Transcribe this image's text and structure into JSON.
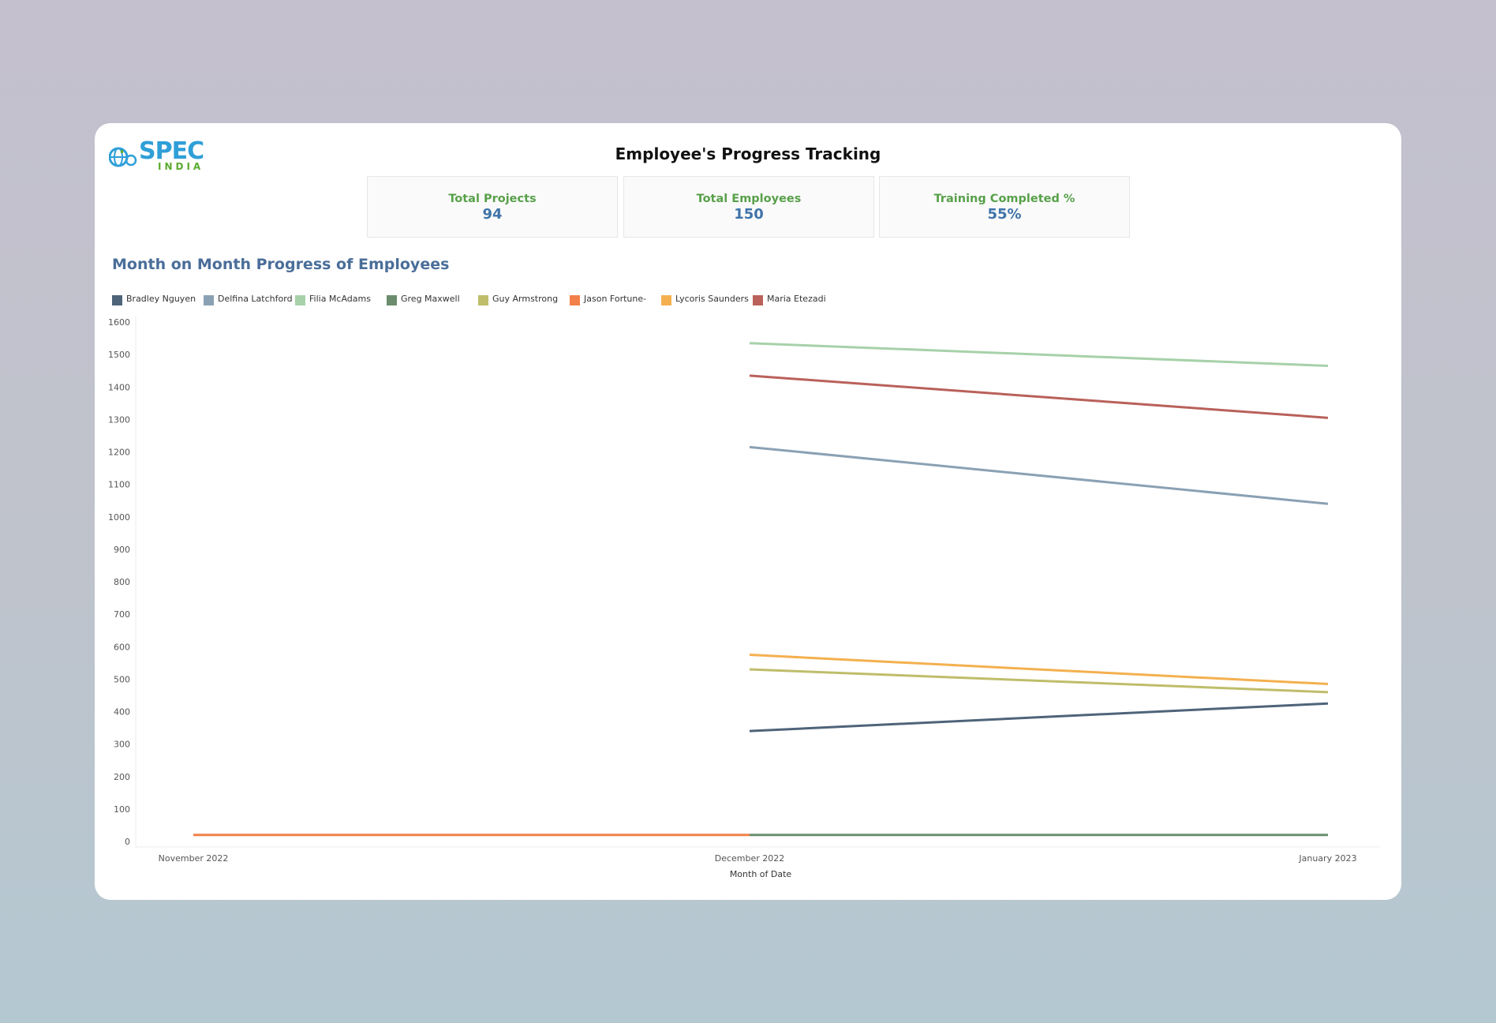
{
  "header": {
    "logo_text": "SPEC",
    "logo_subtext": "INDIA",
    "title": "Employee's Progress Tracking"
  },
  "kpis": [
    {
      "label": "Total Projects",
      "value": "94"
    },
    {
      "label": "Total Employees",
      "value": "150"
    },
    {
      "label": "Training Completed %",
      "value": "55%"
    }
  ],
  "chart_data": {
    "type": "line",
    "title": "Month on Month Progress of Employees",
    "xlabel": "Month of Date",
    "ylabel": "",
    "x": [
      "November 2022",
      "December 2022",
      "January 2023"
    ],
    "ylim": [
      0,
      1600
    ],
    "yticks": [
      0,
      100,
      200,
      300,
      400,
      500,
      600,
      700,
      800,
      900,
      1000,
      1100,
      1200,
      1300,
      1400,
      1500,
      1600
    ],
    "grid": false,
    "legend_position": "top-left",
    "series": [
      {
        "name": "Bradley Nguyen",
        "color": "#4e6479",
        "values": [
          null,
          340,
          425
        ]
      },
      {
        "name": "Delfina Latchford",
        "color": "#8aa1b4",
        "values": [
          null,
          1215,
          1040
        ]
      },
      {
        "name": "Filia McAdams",
        "color": "#a7d1a9",
        "values": [
          null,
          1535,
          1465
        ]
      },
      {
        "name": "Greg Maxwell",
        "color": "#6b8d6e",
        "values": [
          null,
          20,
          20
        ]
      },
      {
        "name": "Guy Armstrong",
        "color": "#bfbd6a",
        "values": [
          null,
          530,
          460
        ]
      },
      {
        "name": "Jason Fortune-",
        "color": "#f2804a",
        "values": [
          20,
          20,
          null
        ]
      },
      {
        "name": "Lycoris Saunders",
        "color": "#f4b04f",
        "values": [
          null,
          575,
          485
        ]
      },
      {
        "name": "Maria Etezadi",
        "color": "#b9615a",
        "values": [
          null,
          1435,
          1305
        ]
      }
    ]
  }
}
